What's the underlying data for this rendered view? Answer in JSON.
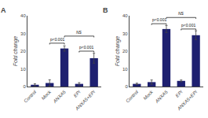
{
  "chart_data": [
    {
      "type": "bar",
      "title": "A",
      "categories": [
        "Control",
        "Mock",
        "ANXA5",
        "EPI",
        "ANXA5+EPI"
      ],
      "values": [
        1.0,
        2.0,
        21.5,
        1.5,
        16.0
      ],
      "errors": [
        0.6,
        1.8,
        1.5,
        0.7,
        2.8
      ],
      "color": "#1e2070",
      "ylabel": "Fold change",
      "ylim": [
        0,
        40
      ],
      "yticks": [
        0,
        10,
        20,
        30,
        40
      ],
      "grid": false,
      "annotations": [
        {
          "text": "p<0.001",
          "from": "Mock",
          "to": "ANXA5",
          "y": 24.5
        },
        {
          "text": "NS",
          "from": "ANXA5",
          "to": "ANXA5+EPI",
          "y": 28.5
        },
        {
          "text": "p<0.001",
          "from": "EPI",
          "to": "ANXA5+EPI",
          "y": 20.0
        }
      ]
    },
    {
      "type": "bar",
      "title": "B",
      "categories": [
        "Control",
        "Mock",
        "ANXA5",
        "EPI",
        "ANXA5+EPI"
      ],
      "values": [
        1.5,
        2.5,
        32.5,
        3.2,
        29.0
      ],
      "errors": [
        0.4,
        1.2,
        2.0,
        0.5,
        2.5
      ],
      "color": "#1e2070",
      "ylabel": "Fold change",
      "ylim": [
        0,
        40
      ],
      "yticks": [
        0,
        10,
        20,
        30,
        40
      ],
      "grid": false,
      "annotations": [
        {
          "text": "p<0.001",
          "from": "Mock",
          "to": "ANXA5",
          "y": 35.5
        },
        {
          "text": "NS",
          "from": "ANXA5",
          "to": "ANXA5+EPI",
          "y": 39.0
        },
        {
          "text": "p<0.001",
          "from": "EPI",
          "to": "ANXA5+EPI",
          "y": 32.5
        }
      ]
    }
  ]
}
